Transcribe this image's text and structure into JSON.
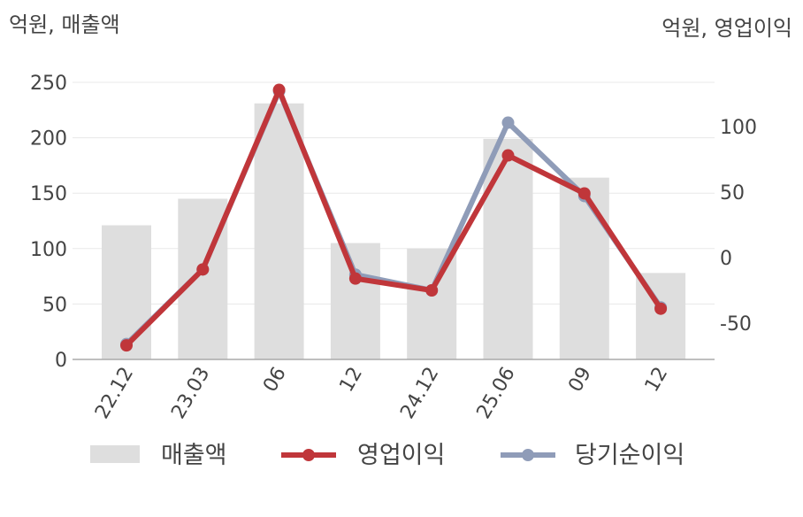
{
  "chart_data": {
    "type": "bar+line",
    "left_axis_label": "억원, 매출액",
    "right_axis_label": "억원, 영업이익",
    "categories": [
      "22.12",
      "23.03",
      "06",
      "12",
      "24.12",
      "25.06",
      "09",
      "12"
    ],
    "left_ylim": [
      0,
      250
    ],
    "left_ticks": [
      0,
      50,
      100,
      150,
      200,
      250
    ],
    "right_ylim": [
      -78,
      133
    ],
    "right_ticks": [
      -50,
      0,
      50,
      100
    ],
    "grid": true,
    "legend_position": "bottom",
    "series": [
      {
        "name": "매출액",
        "kind": "bar",
        "axis": "left",
        "color": "#dedede",
        "values": [
          121,
          145,
          231,
          105,
          100,
          199,
          164,
          78
        ]
      },
      {
        "name": "영업이익",
        "kind": "line",
        "axis": "right",
        "color": "#c0363a",
        "values": [
          -67,
          -9,
          128,
          -16,
          -25,
          78,
          49,
          -39
        ]
      },
      {
        "name": "당기순이익",
        "kind": "line",
        "axis": "right",
        "color": "#8f9cb8",
        "values": [
          -66,
          -9,
          127,
          -13,
          -25,
          103,
          47,
          -38
        ]
      }
    ]
  }
}
